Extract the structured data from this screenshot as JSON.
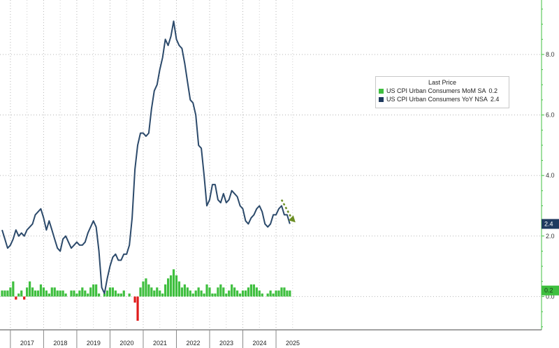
{
  "chart_data": {
    "type": "bar+line",
    "title": "",
    "xlabel": "",
    "ylabel": "",
    "ylim": [
      -1.1,
      9.8
    ],
    "yticks": [
      0.0,
      2.0,
      4.0,
      6.0,
      8.0
    ],
    "ytick_labels": [
      "0.0",
      "2.0",
      "4.0",
      "6.0",
      "8.0"
    ],
    "years": [
      "2017",
      "2018",
      "2019",
      "2020",
      "2021",
      "2022",
      "2023",
      "2024",
      "2025"
    ],
    "grid": true,
    "legend": {
      "title": "Last Price",
      "placement": "top-right",
      "entries": [
        {
          "label": "US CPI Urban Consumers MoM SA",
          "value": "0.2",
          "color": "#3fbf3f"
        },
        {
          "label": "US CPI Urban Consumers YoY NSA",
          "value": "2.4",
          "color": "#1f3a5f"
        }
      ]
    },
    "last_labels": {
      "yoy": "2.4",
      "mom": "0.2"
    },
    "colors": {
      "positive_bar": "#3fbf3f",
      "negative_bar": "#e01b1b",
      "line": "#2c4a6b",
      "axis": "#3fbf3f",
      "arrow": "#6b8e23"
    },
    "series": [
      {
        "name": "US CPI Urban Consumers YoY NSA",
        "kind": "line",
        "start": "2016-10",
        "values": [
          2.2,
          1.9,
          1.6,
          1.7,
          1.9,
          2.2,
          2.0,
          2.1,
          2.0,
          2.2,
          2.3,
          2.4,
          2.7,
          2.8,
          2.9,
          2.6,
          2.2,
          2.5,
          2.2,
          1.9,
          1.6,
          1.5,
          1.9,
          2.0,
          1.8,
          1.6,
          1.7,
          1.8,
          1.7,
          1.7,
          1.8,
          2.1,
          2.3,
          2.5,
          2.3,
          1.5,
          0.3,
          0.1,
          0.6,
          1.0,
          1.3,
          1.4,
          1.2,
          1.2,
          1.4,
          1.4,
          1.7,
          2.6,
          4.2,
          5.0,
          5.4,
          5.4,
          5.3,
          5.4,
          6.2,
          6.8,
          7.0,
          7.5,
          7.9,
          8.5,
          8.3,
          8.6,
          9.1,
          8.5,
          8.3,
          8.2,
          7.7,
          7.1,
          6.5,
          6.4,
          6.0,
          5.0,
          4.9,
          4.0,
          3.0,
          3.2,
          3.7,
          3.7,
          3.2,
          3.1,
          3.4,
          3.1,
          3.2,
          3.5,
          3.4,
          3.3,
          3.0,
          2.9,
          2.5,
          2.4,
          2.6,
          2.7,
          2.9,
          3.0,
          2.8,
          2.4,
          2.3,
          2.4,
          2.7,
          2.7,
          2.9,
          3.0,
          2.7,
          2.7,
          2.4
        ]
      },
      {
        "name": "US CPI Urban Consumers MoM SA",
        "kind": "bar",
        "start": "2016-10",
        "values": [
          0.2,
          0.2,
          0.2,
          0.3,
          0.5,
          -0.1,
          0.1,
          0.2,
          -0.1,
          0.3,
          0.5,
          0.3,
          0.2,
          0.2,
          0.4,
          0.3,
          0.2,
          0.1,
          0.3,
          0.3,
          0.2,
          0.2,
          0.2,
          0.1,
          0.0,
          0.2,
          0.2,
          0.1,
          0.2,
          0.3,
          0.2,
          0.1,
          0.3,
          0.4,
          0.4,
          0.1,
          0.0,
          0.1,
          0.2,
          0.3,
          0.3,
          0.2,
          0.1,
          0.1,
          0.2,
          0.0,
          0.1,
          0.0,
          -0.2,
          -0.8,
          0.3,
          0.5,
          0.6,
          0.4,
          0.3,
          0.2,
          0.3,
          0.2,
          0.1,
          0.4,
          0.6,
          0.7,
          0.9,
          0.7,
          0.5,
          0.3,
          0.4,
          0.3,
          0.2,
          0.1,
          0.2,
          0.3,
          0.2,
          0.1,
          0.4,
          0.3,
          0.1,
          0.1,
          0.3,
          0.4,
          0.3,
          0.1,
          0.2,
          0.4,
          0.3,
          0.2,
          0.1,
          0.2,
          0.2,
          0.3,
          0.4,
          0.4,
          0.3,
          0.2,
          0.1,
          0.0,
          0.1,
          0.2,
          0.1,
          0.2,
          0.2,
          0.3,
          0.3,
          0.2,
          0.2
        ]
      }
    ]
  }
}
